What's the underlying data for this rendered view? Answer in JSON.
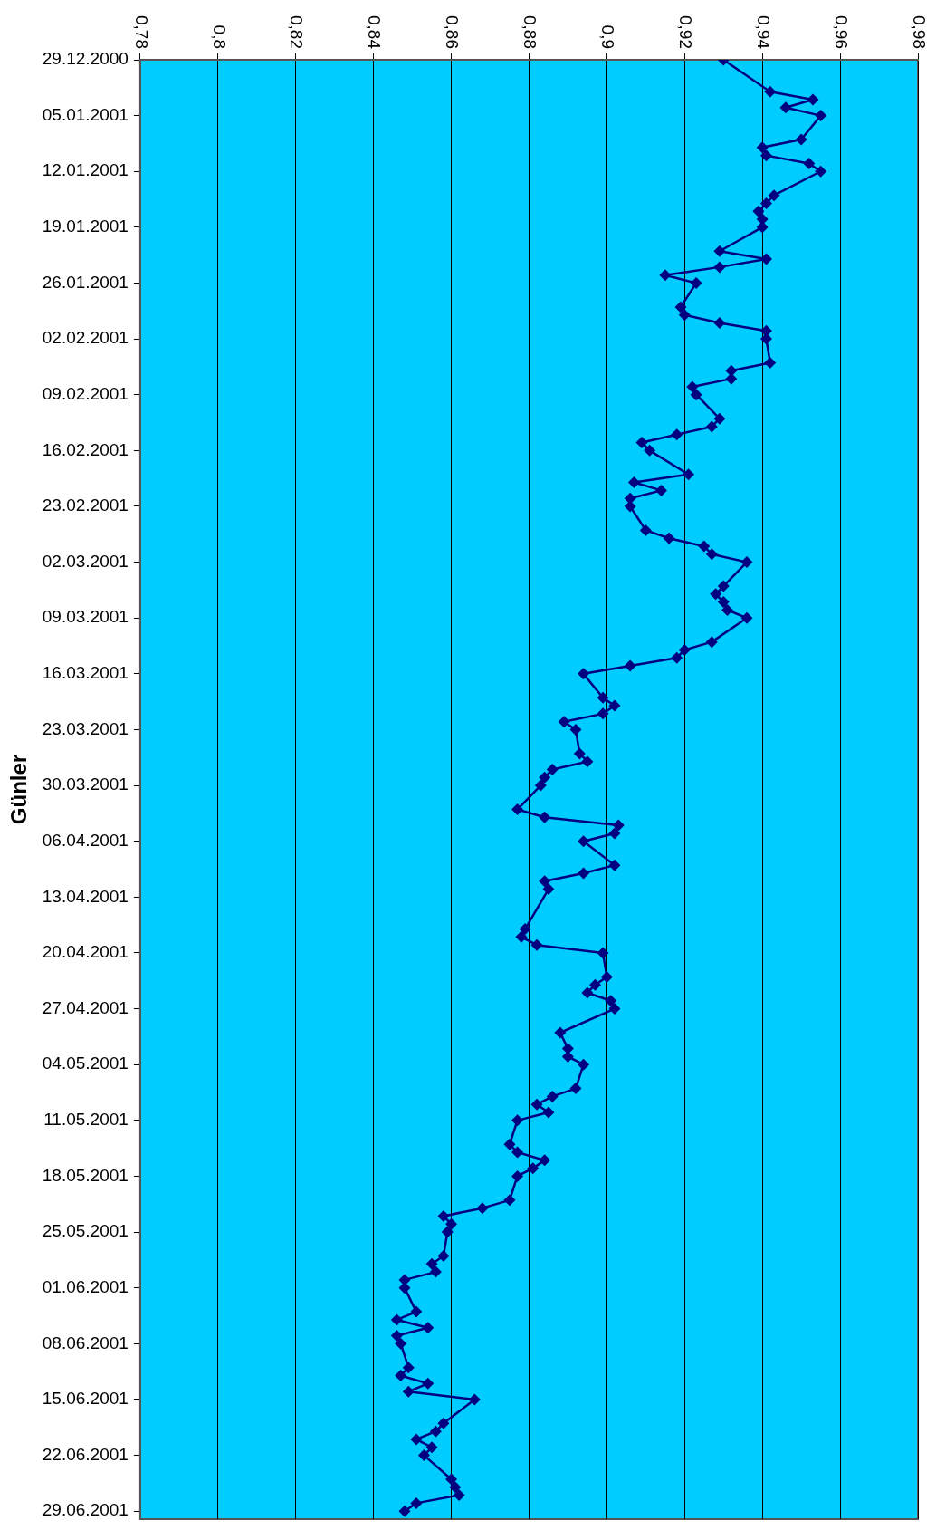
{
  "chart_data": {
    "type": "line",
    "orientation": "horizontal",
    "ylabel": "Günler",
    "legend": false,
    "grid": "x",
    "marker": "diamond",
    "line_style": "solid",
    "xlim": [
      0.78,
      0.98
    ],
    "xticks": [
      {
        "value": 0.78,
        "label": "0,78"
      },
      {
        "value": 0.8,
        "label": "0,8"
      },
      {
        "value": 0.82,
        "label": "0,82"
      },
      {
        "value": 0.84,
        "label": "0,84"
      },
      {
        "value": 0.86,
        "label": "0,86"
      },
      {
        "value": 0.88,
        "label": "0,88"
      },
      {
        "value": 0.9,
        "label": "0,9"
      },
      {
        "value": 0.92,
        "label": "0,92"
      },
      {
        "value": 0.94,
        "label": "0,94"
      },
      {
        "value": 0.96,
        "label": "0,96"
      },
      {
        "value": 0.98,
        "label": "0,98"
      }
    ],
    "ylim": [
      "2001-06-30",
      "2000-12-29"
    ],
    "yticks": [
      {
        "value": "2000-12-29",
        "label": "29.12.2000"
      },
      {
        "value": "2001-01-05",
        "label": "05.01.2001"
      },
      {
        "value": "2001-01-12",
        "label": "12.01.2001"
      },
      {
        "value": "2001-01-19",
        "label": "19.01.2001"
      },
      {
        "value": "2001-01-26",
        "label": "26.01.2001"
      },
      {
        "value": "2001-02-02",
        "label": "02.02.2001"
      },
      {
        "value": "2001-02-09",
        "label": "09.02.2001"
      },
      {
        "value": "2001-02-16",
        "label": "16.02.2001"
      },
      {
        "value": "2001-02-23",
        "label": "23.02.2001"
      },
      {
        "value": "2001-03-02",
        "label": "02.03.2001"
      },
      {
        "value": "2001-03-09",
        "label": "09.03.2001"
      },
      {
        "value": "2001-03-16",
        "label": "16.03.2001"
      },
      {
        "value": "2001-03-23",
        "label": "23.03.2001"
      },
      {
        "value": "2001-03-30",
        "label": "30.03.2001"
      },
      {
        "value": "2001-04-06",
        "label": "06.04.2001"
      },
      {
        "value": "2001-04-13",
        "label": "13.04.2001"
      },
      {
        "value": "2001-04-20",
        "label": "20.04.2001"
      },
      {
        "value": "2001-04-27",
        "label": "27.04.2001"
      },
      {
        "value": "2001-05-04",
        "label": "04.05.2001"
      },
      {
        "value": "2001-05-11",
        "label": "11.05.2001"
      },
      {
        "value": "2001-05-18",
        "label": "18.05.2001"
      },
      {
        "value": "2001-05-25",
        "label": "25.05.2001"
      },
      {
        "value": "2001-06-01",
        "label": "01.06.2001"
      },
      {
        "value": "2001-06-08",
        "label": "08.06.2001"
      },
      {
        "value": "2001-06-15",
        "label": "15.06.2001"
      },
      {
        "value": "2001-06-22",
        "label": "22.06.2001"
      },
      {
        "value": "2001-06-29",
        "label": "29.06.2001"
      }
    ],
    "x": [
      "2000-12-29",
      "2001-01-02",
      "2001-01-03",
      "2001-01-04",
      "2001-01-05",
      "2001-01-08",
      "2001-01-09",
      "2001-01-10",
      "2001-01-11",
      "2001-01-12",
      "2001-01-15",
      "2001-01-16",
      "2001-01-17",
      "2001-01-18",
      "2001-01-19",
      "2001-01-22",
      "2001-01-23",
      "2001-01-24",
      "2001-01-25",
      "2001-01-26",
      "2001-01-29",
      "2001-01-30",
      "2001-01-31",
      "2001-02-01",
      "2001-02-02",
      "2001-02-05",
      "2001-02-06",
      "2001-02-07",
      "2001-02-08",
      "2001-02-09",
      "2001-02-12",
      "2001-02-13",
      "2001-02-14",
      "2001-02-15",
      "2001-02-16",
      "2001-02-19",
      "2001-02-20",
      "2001-02-21",
      "2001-02-22",
      "2001-02-23",
      "2001-02-26",
      "2001-02-27",
      "2001-02-28",
      "2001-03-01",
      "2001-03-02",
      "2001-03-05",
      "2001-03-06",
      "2001-03-07",
      "2001-03-08",
      "2001-03-09",
      "2001-03-12",
      "2001-03-13",
      "2001-03-14",
      "2001-03-15",
      "2001-03-16",
      "2001-03-19",
      "2001-03-20",
      "2001-03-21",
      "2001-03-22",
      "2001-03-23",
      "2001-03-26",
      "2001-03-27",
      "2001-03-28",
      "2001-03-29",
      "2001-03-30",
      "2001-04-02",
      "2001-04-03",
      "2001-04-04",
      "2001-04-05",
      "2001-04-06",
      "2001-04-09",
      "2001-04-10",
      "2001-04-11",
      "2001-04-12",
      "2001-04-17",
      "2001-04-18",
      "2001-04-19",
      "2001-04-20",
      "2001-04-23",
      "2001-04-24",
      "2001-04-25",
      "2001-04-26",
      "2001-04-27",
      "2001-04-30",
      "2001-05-02",
      "2001-05-03",
      "2001-05-04",
      "2001-05-07",
      "2001-05-08",
      "2001-05-09",
      "2001-05-10",
      "2001-05-11",
      "2001-05-14",
      "2001-05-15",
      "2001-05-16",
      "2001-05-17",
      "2001-05-18",
      "2001-05-21",
      "2001-05-22",
      "2001-05-23",
      "2001-05-24",
      "2001-05-25",
      "2001-05-28",
      "2001-05-29",
      "2001-05-30",
      "2001-05-31",
      "2001-06-01",
      "2001-06-04",
      "2001-06-05",
      "2001-06-06",
      "2001-06-07",
      "2001-06-08",
      "2001-06-11",
      "2001-06-12",
      "2001-06-13",
      "2001-06-14",
      "2001-06-15",
      "2001-06-18",
      "2001-06-19",
      "2001-06-20",
      "2001-06-21",
      "2001-06-22",
      "2001-06-25",
      "2001-06-26",
      "2001-06-27",
      "2001-06-28",
      "2001-06-29"
    ],
    "series": [
      {
        "color": "#000080",
        "values": [
          0.93,
          0.942,
          0.953,
          0.946,
          0.955,
          0.95,
          0.94,
          0.941,
          0.952,
          0.955,
          0.943,
          0.941,
          0.939,
          0.94,
          0.94,
          0.929,
          0.941,
          0.929,
          0.915,
          0.923,
          0.919,
          0.92,
          0.929,
          0.941,
          0.941,
          0.942,
          0.932,
          0.932,
          0.922,
          0.923,
          0.929,
          0.927,
          0.918,
          0.909,
          0.911,
          0.921,
          0.907,
          0.914,
          0.906,
          0.906,
          0.91,
          0.916,
          0.925,
          0.927,
          0.936,
          0.93,
          0.928,
          0.93,
          0.931,
          0.936,
          0.927,
          0.92,
          0.918,
          0.906,
          0.894,
          0.899,
          0.902,
          0.899,
          0.889,
          0.892,
          0.893,
          0.895,
          0.886,
          0.884,
          0.883,
          0.877,
          0.884,
          0.903,
          0.902,
          0.894,
          0.902,
          0.894,
          0.884,
          0.885,
          0.879,
          0.878,
          0.882,
          0.899,
          0.9,
          0.897,
          0.895,
          0.901,
          0.902,
          0.888,
          0.89,
          0.89,
          0.894,
          0.892,
          0.886,
          0.882,
          0.885,
          0.877,
          0.875,
          0.877,
          0.884,
          0.881,
          0.877,
          0.875,
          0.868,
          0.858,
          0.86,
          0.859,
          0.858,
          0.855,
          0.856,
          0.848,
          0.848,
          0.851,
          0.846,
          0.854,
          0.846,
          0.847,
          0.849,
          0.847,
          0.854,
          0.849,
          0.866,
          0.858,
          0.856,
          0.851,
          0.855,
          0.853,
          0.86,
          0.861,
          0.862,
          0.851,
          0.848
        ]
      }
    ]
  }
}
